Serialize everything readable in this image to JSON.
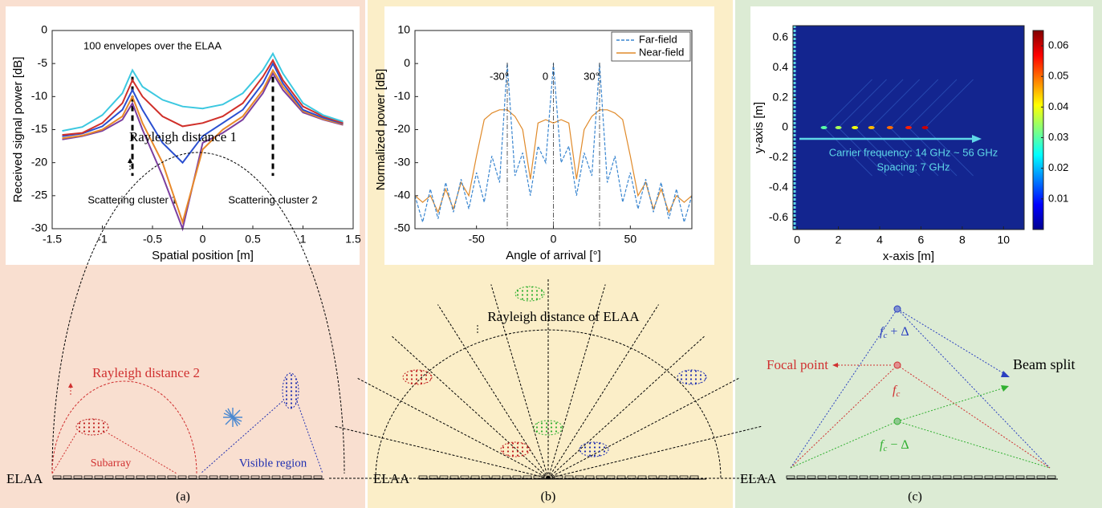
{
  "chart_data": [
    {
      "type": "line",
      "title": "100 envelopes over the ELAA",
      "xlabel": "Spatial position [m]",
      "ylabel": "Received signal power [dB]",
      "xlim": [
        -1.5,
        1.5
      ],
      "xticks": [
        -1.5,
        -1,
        -0.5,
        0,
        0.5,
        1,
        1.5
      ],
      "ylim": [
        -30,
        0
      ],
      "yticks": [
        -30,
        -25,
        -20,
        -15,
        -10,
        -5,
        0
      ],
      "x": [
        -1.4,
        -1.2,
        -1.0,
        -0.8,
        -0.7,
        -0.6,
        -0.4,
        -0.2,
        0,
        0.2,
        0.4,
        0.6,
        0.7,
        0.8,
        1.0,
        1.2,
        1.4
      ],
      "series": [
        {
          "color": "#7b3fa0",
          "values": [
            -16.5,
            -16,
            -15.2,
            -13.5,
            -11,
            -15,
            -22,
            -30,
            -17,
            -15.5,
            -13.5,
            -9.5,
            -6.5,
            -9,
            -12.4,
            -13.5,
            -14.3
          ]
        },
        {
          "color": "#e8892a",
          "values": [
            -16.3,
            -15.9,
            -15,
            -13,
            -10,
            -14,
            -20,
            -29,
            -18,
            -15,
            -13,
            -9,
            -6,
            -8.5,
            -12.2,
            -13.4,
            -14.2
          ]
        },
        {
          "color": "#2a4fd0",
          "values": [
            -16,
            -15.6,
            -14.5,
            -12,
            -9,
            -12,
            -17,
            -20,
            -16,
            -14,
            -12,
            -8,
            -5,
            -8,
            -12,
            -13.2,
            -14.1
          ]
        },
        {
          "color": "#d0302a",
          "values": [
            -15.8,
            -15.5,
            -14,
            -11,
            -7.5,
            -10,
            -13,
            -14.5,
            -14,
            -13,
            -11,
            -7,
            -4.5,
            -7.5,
            -11.5,
            -13,
            -14
          ]
        },
        {
          "color": "#3cc8e0",
          "values": [
            -15.2,
            -14.6,
            -12.8,
            -9.5,
            -6,
            -8.5,
            -10.5,
            -11.5,
            -11.8,
            -11.2,
            -9.5,
            -6,
            -3.5,
            -6.5,
            -11,
            -12.8,
            -13.8
          ]
        }
      ],
      "cluster_lines": [
        -0.7,
        0.7
      ],
      "cluster_labels": [
        "Scattering cluster 1",
        "Scattering cluster 2"
      ]
    },
    {
      "type": "line",
      "xlabel": "Angle of arrival [°]",
      "ylabel": "Normalized power [dB]",
      "xlim": [
        -90,
        90
      ],
      "xticks": [
        -50,
        0,
        50
      ],
      "ylim": [
        -50,
        10
      ],
      "yticks": [
        -50,
        -40,
        -30,
        -20,
        -10,
        0,
        10
      ],
      "legend": "upper right",
      "x": [
        -90,
        -85,
        -80,
        -75,
        -70,
        -65,
        -60,
        -55,
        -50,
        -45,
        -40,
        -35,
        -30,
        -25,
        -20,
        -15,
        -10,
        -5,
        0,
        5,
        10,
        15,
        20,
        25,
        30,
        35,
        40,
        45,
        50,
        55,
        60,
        65,
        70,
        75,
        80,
        85,
        90
      ],
      "series": [
        {
          "name": "Near-field",
          "color": "#e08a2a",
          "style": "solid",
          "values": [
            -40,
            -42,
            -40,
            -45,
            -38,
            -44,
            -36,
            -40,
            -28,
            -17,
            -15,
            -14,
            -14,
            -16,
            -20,
            -35,
            -18,
            -17,
            -18,
            -17,
            -18,
            -35,
            -20,
            -16,
            -14,
            -14,
            -15,
            -17,
            -28,
            -40,
            -36,
            -44,
            -38,
            -45,
            -40,
            -42,
            -40
          ]
        },
        {
          "name": "Far-field",
          "color": "#3a86d0",
          "style": "dashed",
          "values": [
            -40,
            -48,
            -38,
            -47,
            -36,
            -45,
            -35,
            -44,
            -33,
            -42,
            -28,
            -36,
            0,
            -34,
            -27,
            -40,
            -25,
            -30,
            0,
            -30,
            -25,
            -40,
            -27,
            -34,
            0,
            -36,
            -28,
            -42,
            -33,
            -44,
            -35,
            -45,
            -36,
            -47,
            -38,
            -48,
            -40
          ]
        }
      ],
      "peak_angles": [
        -30,
        0,
        30
      ],
      "peak_labels": [
        "-30°",
        "0",
        "30°"
      ]
    },
    {
      "type": "heatmap",
      "xlabel": "x-axis [m]",
      "ylabel": "y-axis [m]",
      "xlim": [
        -0.2,
        11
      ],
      "xticks": [
        0,
        2,
        4,
        6,
        8,
        10
      ],
      "ylim": [
        -0.68,
        0.68
      ],
      "yticks": [
        -0.6,
        -0.4,
        -0.2,
        0,
        0.2,
        0.4,
        0.6
      ],
      "clim": [
        0,
        0.065
      ],
      "cticks": [
        0.01,
        0.02,
        0.03,
        0.04,
        0.05,
        0.06
      ],
      "focal_points": {
        "x": [
          1.3,
          2.0,
          2.8,
          3.6,
          4.5,
          5.4,
          6.2
        ],
        "y": [
          0,
          0,
          0,
          0,
          0,
          0,
          0
        ],
        "values": [
          0.03,
          0.035,
          0.04,
          0.045,
          0.05,
          0.055,
          0.06
        ]
      },
      "annotations": [
        "Carrier frequency: 14 GHz ~ 56 GHz",
        "Spacing: 7 GHz"
      ]
    }
  ],
  "diagrams": {
    "a": {
      "rayleigh_1": "Rayleigh distance 1",
      "rayleigh_2": "Rayleigh distance 2",
      "subarray": "Subarray",
      "visible": "Visible region",
      "array": "ELAA",
      "caption": "(a)"
    },
    "b": {
      "rayleigh": "Rayleigh distance of ELAA",
      "array": "ELAA",
      "caption": "(b)"
    },
    "c": {
      "focal": "Focal point",
      "split": "Beam split",
      "upper": {
        "symbol": "f",
        "subscript": "c",
        "suffix": " + Δ"
      },
      "center": {
        "symbol": "f",
        "subscript": "c"
      },
      "lower": {
        "symbol": "f",
        "subscript": "c",
        "suffix": " − Δ"
      },
      "array": "ELAA",
      "caption": "(c)"
    }
  }
}
